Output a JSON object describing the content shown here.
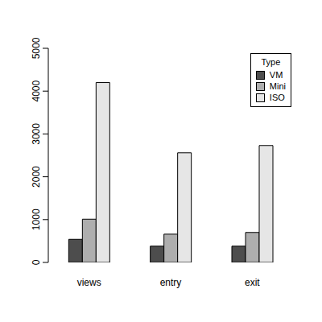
{
  "chart_data": {
    "type": "bar",
    "categories": [
      "views",
      "entry",
      "exit"
    ],
    "series": [
      {
        "name": "VM",
        "color": "#4d4d4d",
        "values": [
          540,
          380,
          380
        ]
      },
      {
        "name": "Mini",
        "color": "#aeaeae",
        "values": [
          1010,
          660,
          700
        ]
      },
      {
        "name": "ISO",
        "color": "#e6e6e6",
        "values": [
          4200,
          2560,
          2730
        ]
      }
    ],
    "ylim": [
      0,
      5000
    ],
    "yticks": [
      0,
      1000,
      2000,
      3000,
      4000,
      5000
    ],
    "legend": "top-right",
    "legend_title": "Type",
    "grid": false
  }
}
